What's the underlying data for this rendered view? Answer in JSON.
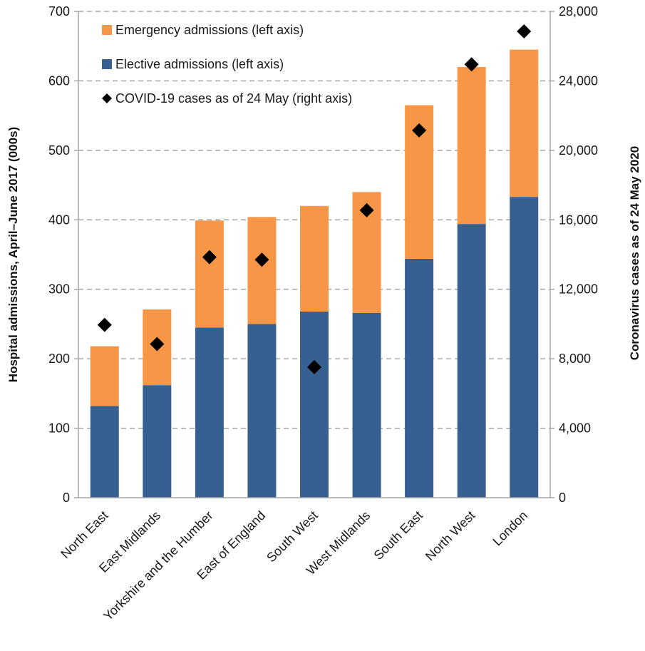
{
  "chart_data": {
    "type": "bar",
    "stacked": true,
    "categories": [
      "North East",
      "East Midlands",
      "Yorkshire and the Humber",
      "East of England",
      "South West",
      "West Midlands",
      "South East",
      "North West",
      "London"
    ],
    "series": [
      {
        "name": "Elective admissions (left axis)",
        "type": "bar",
        "axis": "left",
        "color": "#376092",
        "values": [
          132,
          162,
          245,
          250,
          268,
          266,
          344,
          394,
          433
        ]
      },
      {
        "name": "Emergency admissions (left axis)",
        "type": "bar",
        "axis": "left",
        "color": "#F79646",
        "values": [
          86,
          109,
          154,
          154,
          152,
          174,
          221,
          226,
          212
        ]
      },
      {
        "name": "COVID-19 cases as of 24 May (right axis)",
        "type": "scatter",
        "marker": "diamond",
        "axis": "right",
        "color": "#000000",
        "values": [
          9950,
          8850,
          13850,
          13700,
          7520,
          16550,
          21150,
          24950,
          26850
        ]
      }
    ],
    "legend_order": [
      1,
      0,
      2
    ],
    "legend_position": "top-left",
    "ylabel": "Hospital admissions, April–June 2017 (000s)",
    "y2label": "Coronavirus cases as of 24 May 2020",
    "ylim": [
      0,
      700
    ],
    "y2lim": [
      0,
      28000
    ],
    "yticks": [
      "0",
      "100",
      "200",
      "300",
      "400",
      "500",
      "600",
      "700"
    ],
    "y2ticks": [
      "0",
      "4,000",
      "8,000",
      "12,000",
      "16,000",
      "20,000",
      "24,000",
      "28,000"
    ],
    "grid": true
  }
}
